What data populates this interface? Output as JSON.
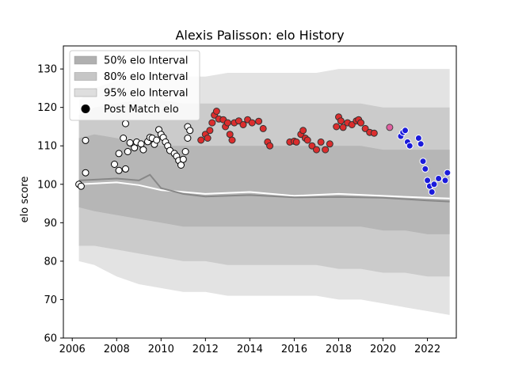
{
  "chart_data": {
    "type": "scatter",
    "title": "Alexis Palisson: elo History",
    "xlabel": "",
    "ylabel": "elo score",
    "xlim": [
      2005.6,
      2023.3
    ],
    "ylim": [
      60,
      136
    ],
    "xticks": [
      2006,
      2008,
      2010,
      2012,
      2014,
      2016,
      2018,
      2020,
      2022
    ],
    "yticks": [
      60,
      70,
      80,
      90,
      100,
      110,
      120,
      130
    ],
    "legend_position": "top-left",
    "legend": [
      {
        "label": "50% elo Interval",
        "kind": "band",
        "color": "#b3b3b3"
      },
      {
        "label": "80% elo Interval",
        "kind": "band",
        "color": "#c8c8c8"
      },
      {
        "label": "95% elo Interval",
        "kind": "band",
        "color": "#e0e0e0"
      },
      {
        "label": "Post Match elo",
        "kind": "marker",
        "color": "#000000"
      }
    ],
    "bands": {
      "x": [
        2006.3,
        2007.0,
        2008.0,
        2009.0,
        2010.0,
        2011.0,
        2012.0,
        2013.0,
        2014.0,
        2015.0,
        2016.0,
        2017.0,
        2018.0,
        2019.0,
        2020.0,
        2021.0,
        2022.0,
        2023.0
      ],
      "p95_low": [
        80,
        79,
        76,
        74,
        73,
        72,
        72,
        71,
        71,
        71,
        71,
        71,
        70,
        70,
        69,
        68,
        67,
        66
      ],
      "p80_low": [
        84,
        84,
        83,
        82,
        81,
        80,
        80,
        79,
        79,
        79,
        79,
        79,
        78,
        78,
        77,
        77,
        76,
        76
      ],
      "p50_low": [
        94,
        93,
        92,
        91,
        90,
        89,
        89,
        89,
        89,
        89,
        89,
        89,
        89,
        89,
        88,
        88,
        87,
        87
      ],
      "p50_high": [
        112,
        113,
        112,
        111,
        110,
        110,
        110,
        110,
        110,
        110,
        110,
        110,
        110,
        110,
        109,
        109,
        109,
        109
      ],
      "p80_high": [
        118,
        120,
        121,
        122,
        122,
        121,
        121,
        121,
        121,
        121,
        121,
        121,
        121,
        121,
        120,
        120,
        120,
        120
      ],
      "p95_high": [
        122,
        125,
        127,
        128,
        128,
        128,
        128,
        129,
        129,
        129,
        129,
        129,
        130,
        130,
        130,
        130,
        130,
        130
      ]
    },
    "series": [
      {
        "label": "Post Match elo",
        "marker_groups": [
          {
            "fill": "#ffffff",
            "edge": "#000000",
            "points": [
              [
                2006.3,
                100
              ],
              [
                2006.4,
                99.5
              ],
              [
                2006.6,
                111.4
              ],
              [
                2006.6,
                103
              ],
              [
                2007.9,
                105.2
              ],
              [
                2008.1,
                103.6
              ],
              [
                2008.1,
                108
              ],
              [
                2008.3,
                112
              ],
              [
                2008.4,
                115.8
              ],
              [
                2008.4,
                104
              ],
              [
                2008.5,
                108.5
              ],
              [
                2008.6,
                110.8
              ],
              [
                2008.8,
                109.5
              ],
              [
                2008.9,
                111
              ],
              [
                2009.1,
                110.5
              ],
              [
                2009.2,
                109
              ],
              [
                2009.4,
                111.1
              ],
              [
                2009.5,
                112.2
              ],
              [
                2009.6,
                112
              ],
              [
                2009.7,
                110.4
              ],
              [
                2009.8,
                111.5
              ],
              [
                2009.9,
                114.2
              ],
              [
                2010.0,
                113
              ],
              [
                2010.1,
                112.2
              ],
              [
                2010.2,
                111
              ],
              [
                2010.3,
                110
              ],
              [
                2010.4,
                108.8
              ],
              [
                2010.6,
                108
              ],
              [
                2010.7,
                107.3
              ],
              [
                2010.8,
                106.2
              ],
              [
                2010.9,
                105
              ],
              [
                2011.0,
                106.5
              ],
              [
                2011.1,
                108.5
              ],
              [
                2011.2,
                112
              ],
              [
                2011.2,
                115
              ],
              [
                2011.3,
                114
              ]
            ]
          },
          {
            "fill": "#dc2d2d",
            "edge": "#333333",
            "points": [
              [
                2011.8,
                111.5
              ],
              [
                2012.0,
                113
              ],
              [
                2012.1,
                112
              ],
              [
                2012.2,
                114
              ],
              [
                2012.3,
                116
              ],
              [
                2012.4,
                118
              ],
              [
                2012.5,
                119
              ],
              [
                2012.6,
                117
              ],
              [
                2012.8,
                116.8
              ],
              [
                2012.9,
                115
              ],
              [
                2013.0,
                116
              ],
              [
                2013.1,
                113
              ],
              [
                2013.2,
                111.5
              ],
              [
                2013.3,
                116
              ],
              [
                2013.5,
                116.5
              ],
              [
                2013.7,
                115.5
              ],
              [
                2013.9,
                116.8
              ],
              [
                2014.1,
                116
              ],
              [
                2014.4,
                116.4
              ],
              [
                2014.6,
                114.5
              ],
              [
                2014.8,
                111
              ],
              [
                2014.9,
                110
              ],
              [
                2015.8,
                111
              ],
              [
                2016.0,
                111.2
              ],
              [
                2016.1,
                111
              ],
              [
                2016.3,
                113
              ],
              [
                2016.4,
                114
              ],
              [
                2016.5,
                112
              ],
              [
                2016.6,
                111.5
              ],
              [
                2016.8,
                110
              ],
              [
                2017.0,
                109
              ],
              [
                2017.2,
                111
              ],
              [
                2017.4,
                109
              ],
              [
                2017.6,
                110.5
              ],
              [
                2017.9,
                115
              ],
              [
                2018.0,
                117.5
              ],
              [
                2018.1,
                116.5
              ],
              [
                2018.2,
                114.8
              ],
              [
                2018.4,
                116
              ],
              [
                2018.6,
                115.5
              ],
              [
                2018.8,
                116.5
              ],
              [
                2018.9,
                116.8
              ],
              [
                2019.0,
                116
              ],
              [
                2019.2,
                114.5
              ],
              [
                2019.4,
                113.5
              ],
              [
                2019.6,
                113.3
              ]
            ]
          },
          {
            "fill": "#e060a0",
            "edge": "#444444",
            "points": [
              [
                2020.3,
                114.8
              ]
            ]
          },
          {
            "fill": "#1a1adb",
            "edge": "#ffffff",
            "points": [
              [
                2020.8,
                112.5
              ],
              [
                2020.9,
                113.5
              ],
              [
                2021.0,
                114
              ],
              [
                2021.1,
                111
              ],
              [
                2021.2,
                110
              ],
              [
                2021.6,
                112
              ],
              [
                2021.7,
                110.5
              ],
              [
                2021.8,
                106
              ],
              [
                2021.9,
                104
              ],
              [
                2022.0,
                101
              ],
              [
                2022.1,
                99.5
              ],
              [
                2022.2,
                98
              ],
              [
                2022.3,
                100
              ],
              [
                2022.5,
                101.5
              ],
              [
                2022.8,
                101
              ],
              [
                2022.9,
                103
              ]
            ]
          }
        ]
      },
      {
        "label": "mean line (white)",
        "line_color": "#ffffff",
        "points": [
          [
            2006.3,
            100
          ],
          [
            2008.0,
            100.5
          ],
          [
            2009.0,
            99.8
          ],
          [
            2010.0,
            98.5
          ],
          [
            2012.0,
            97.5
          ],
          [
            2014.0,
            98
          ],
          [
            2016.0,
            97
          ],
          [
            2018.0,
            97.5
          ],
          [
            2020.0,
            97
          ],
          [
            2022.0,
            96.5
          ],
          [
            2023.0,
            96.3
          ]
        ]
      },
      {
        "label": "median line (gray)",
        "line_color": "#888888",
        "points": [
          [
            2006.3,
            101
          ],
          [
            2008.0,
            101.5
          ],
          [
            2009.0,
            101
          ],
          [
            2009.5,
            102.5
          ],
          [
            2010.0,
            99
          ],
          [
            2011.0,
            97.5
          ],
          [
            2012.0,
            96.8
          ],
          [
            2014.0,
            97.2
          ],
          [
            2016.0,
            96.6
          ],
          [
            2018.0,
            96.7
          ],
          [
            2020.0,
            96.5
          ],
          [
            2022.0,
            95.8
          ],
          [
            2023.0,
            95.5
          ]
        ]
      }
    ]
  }
}
